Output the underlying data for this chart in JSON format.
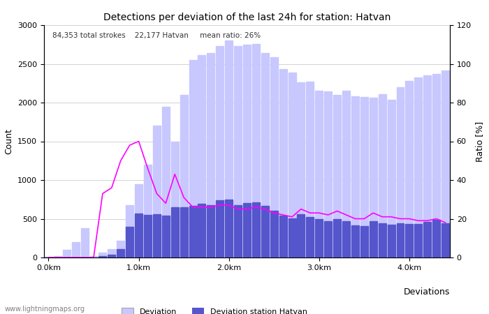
{
  "title": "Detections per deviation of the last 24h for station: Hatvan",
  "subtitle": "84,353 total strokes    22,177 Hatvan     mean ratio: 26%",
  "xlabel": "Deviations",
  "ylabel_left": "Count",
  "ylabel_right": "Ratio [%]",
  "ylim_left": [
    0,
    3000
  ],
  "ylim_right": [
    0,
    120
  ],
  "yticks_left": [
    0,
    500,
    1000,
    1500,
    2000,
    2500,
    3000
  ],
  "yticks_right": [
    0,
    20,
    40,
    60,
    80,
    100,
    120
  ],
  "xtick_labels": [
    "0.0km",
    "1.0km",
    "2.0km",
    "3.0km",
    "4.0km"
  ],
  "xtick_positions": [
    0,
    10,
    20,
    30,
    40
  ],
  "color_light_bar": "#c8c8ff",
  "color_dark_bar": "#5555cc",
  "color_line": "#ff00ff",
  "total_bars": 45,
  "bar_width": 0.85,
  "deviation_total": [
    5,
    15,
    100,
    200,
    380,
    20,
    60,
    110,
    220,
    680,
    950,
    1200,
    1700,
    1950,
    1500,
    2100,
    2550,
    2610,
    2640,
    2730,
    2800,
    2730,
    2750,
    2760,
    2640,
    2590,
    2430,
    2390,
    2260,
    2270,
    2150,
    2140,
    2100,
    2155,
    2080,
    2070,
    2060,
    2110,
    2040,
    2200,
    2280,
    2320,
    2350,
    2370,
    2410
  ],
  "deviation_station": [
    0,
    0,
    0,
    0,
    0,
    0,
    20,
    40,
    110,
    395,
    570,
    550,
    560,
    540,
    645,
    650,
    670,
    690,
    680,
    740,
    750,
    680,
    700,
    710,
    670,
    605,
    545,
    505,
    555,
    525,
    495,
    465,
    495,
    465,
    415,
    405,
    465,
    445,
    425,
    445,
    435,
    435,
    455,
    485,
    445
  ],
  "ratio_line": [
    0,
    0,
    0,
    0,
    0,
    0,
    33,
    36,
    50,
    58,
    60,
    46,
    33,
    28,
    43,
    31,
    26,
    26,
    26,
    27,
    27,
    25,
    25,
    26,
    25,
    23,
    22,
    21,
    25,
    23,
    23,
    22,
    24,
    22,
    20,
    20,
    23,
    21,
    21,
    20,
    20,
    19,
    19,
    20,
    18
  ],
  "watermark": "www.lightningmaps.org",
  "fig_width": 7.0,
  "fig_height": 4.5,
  "dpi": 100
}
